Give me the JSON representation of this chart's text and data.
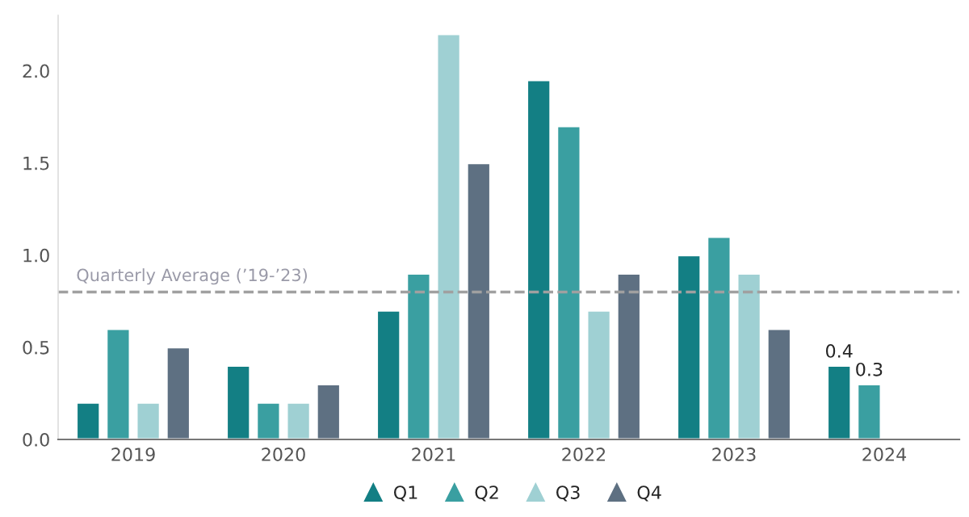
{
  "chart_data": {
    "type": "bar",
    "categories": [
      "2019",
      "2020",
      "2021",
      "2022",
      "2023",
      "2024"
    ],
    "series": [
      {
        "name": "Q1",
        "color": "#137f84",
        "values": [
          0.2,
          0.4,
          0.7,
          1.95,
          1.0,
          0.4
        ],
        "value_labels": [
          null,
          null,
          null,
          null,
          null,
          "0.4"
        ]
      },
      {
        "name": "Q2",
        "color": "#3a9fa1",
        "values": [
          0.6,
          0.2,
          0.9,
          1.7,
          1.1,
          0.3
        ],
        "value_labels": [
          null,
          null,
          null,
          null,
          null,
          "0.3"
        ]
      },
      {
        "name": "Q3",
        "color": "#9fd0d3",
        "values": [
          0.2,
          0.2,
          2.2,
          0.7,
          0.9,
          null
        ]
      },
      {
        "name": "Q4",
        "color": "#5e7082",
        "values": [
          0.5,
          0.3,
          1.5,
          0.9,
          0.6,
          null
        ]
      }
    ],
    "ylim": [
      0,
      2.3
    ],
    "yticks": [
      {
        "value": 0,
        "label": "0.0"
      },
      {
        "value": 0.5,
        "label": "0.5"
      },
      {
        "value": 1,
        "label": "1.0"
      },
      {
        "value": 1.5,
        "label": "1.5"
      },
      {
        "value": 2,
        "label": "2.0"
      }
    ],
    "ref_lines": [
      {
        "axis": "y",
        "value": 0.8,
        "label": "Quarterly Average (’19-’23)",
        "color": "#a0a0a0",
        "line_style": "dashed"
      }
    ],
    "grid": false,
    "legend": "bottom"
  }
}
